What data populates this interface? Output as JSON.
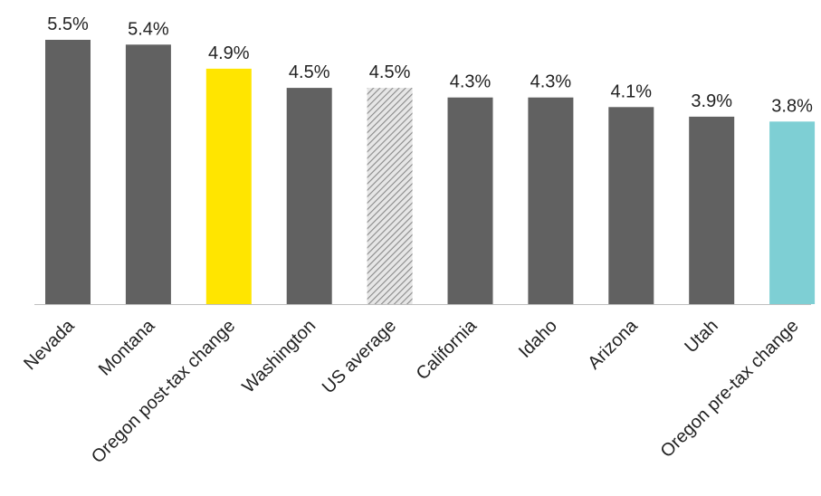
{
  "chart_data": {
    "type": "bar",
    "title": "",
    "xlabel": "",
    "ylabel": "",
    "ylim": [
      0,
      5.5
    ],
    "grid": false,
    "legend": "none",
    "categories": [
      "Nevada",
      "Montana",
      "Oregon post-tax change",
      "Washington",
      "US average",
      "California",
      "Idaho",
      "Arizona",
      "Utah",
      "Oregon pre-tax change"
    ],
    "values": [
      5.5,
      5.4,
      4.9,
      4.5,
      4.5,
      4.3,
      4.3,
      4.1,
      3.9,
      3.8
    ],
    "value_labels": [
      "5.5%",
      "5.4%",
      "4.9%",
      "4.5%",
      "4.5%",
      "4.3%",
      "4.3%",
      "4.1%",
      "3.9%",
      "3.8%"
    ],
    "bar_fills": [
      "#616161",
      "#616161",
      "#FFE500",
      "#616161",
      "hatched",
      "#616161",
      "#616161",
      "#616161",
      "#616161",
      "#7ECFD4"
    ],
    "colors": {
      "default": "#616161",
      "highlight": "#FFE500",
      "pretax": "#7ECFD4",
      "hatch_dark": "#8a8a8a",
      "hatch_light": "#e6e6e6",
      "axis": "#bfbfbf"
    }
  }
}
